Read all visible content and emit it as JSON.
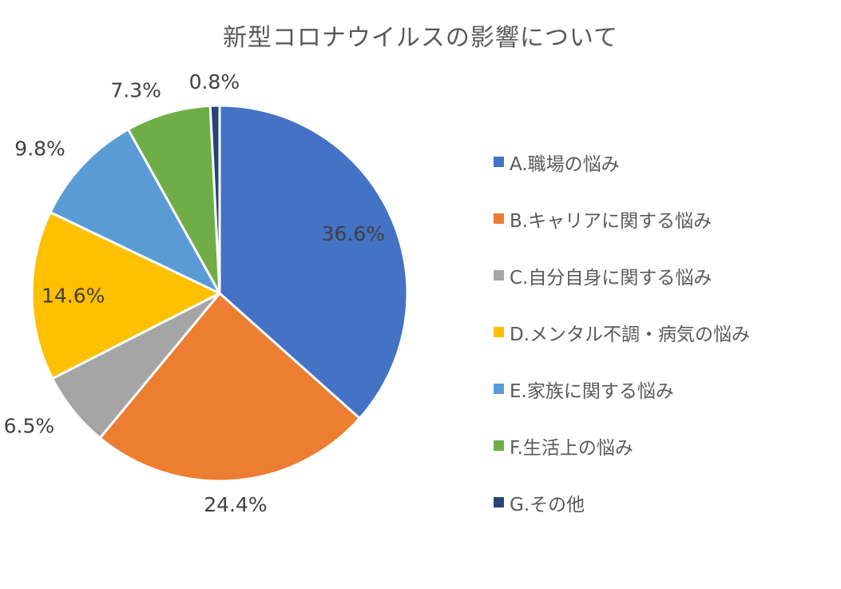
{
  "chart_data": {
    "type": "pie",
    "title": "新型コロナウイルスの影響について",
    "slices": [
      {
        "name": "A.職場の悩み",
        "value": 36.6,
        "label": "36.6%",
        "color": "#4472C4"
      },
      {
        "name": "B.キャリアに関する悩み",
        "value": 24.4,
        "label": "24.4%",
        "color": "#ED7D31"
      },
      {
        "name": "C.自分自身に関する悩み",
        "value": 6.5,
        "label": "6.5%",
        "color": "#A5A5A5"
      },
      {
        "name": "D.メンタル不調・病気の悩み",
        "value": 14.6,
        "label": "14.6%",
        "color": "#FFC000"
      },
      {
        "name": "E.家族に関する悩み",
        "value": 9.8,
        "label": "9.8%",
        "color": "#5B9BD5"
      },
      {
        "name": "F.生活上の悩み",
        "value": 7.3,
        "label": "7.3%",
        "color": "#70AD47"
      },
      {
        "name": "G.その他",
        "value": 0.8,
        "label": "0.8%",
        "color": "#264478"
      }
    ],
    "legend_position": "right"
  }
}
